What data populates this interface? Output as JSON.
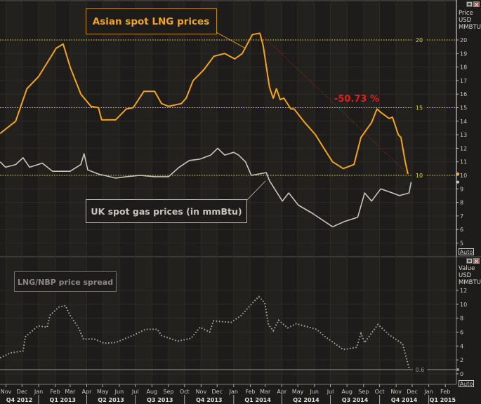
{
  "chart_data": [
    {
      "type": "line",
      "pane": "top",
      "y_axis_label": [
        "Price",
        "USD",
        "MMBTU"
      ],
      "ylim": [
        4.5,
        21.5
      ],
      "yticks": [
        5,
        6,
        7,
        8,
        9,
        10,
        11,
        12,
        13,
        14,
        15,
        16,
        17,
        18,
        19,
        20
      ],
      "grid": true,
      "reference_lines": [
        {
          "value": 20,
          "label": "20",
          "color": "#d8d84a"
        },
        {
          "value": 15,
          "label": "15",
          "color": "#d8d84a"
        },
        {
          "value": 10,
          "label": "10",
          "color": "#d8d84a"
        }
      ],
      "auto_label": "Auto",
      "series": [
        {
          "name": "Asian spot LNG prices",
          "color": "#f5a31a",
          "points": [
            [
              "2012-10-21",
              13.1
            ],
            [
              "2012-11-19",
              14.0
            ],
            [
              "2012-12-10",
              16.4
            ],
            [
              "2013-01-01",
              17.3
            ],
            [
              "2013-02-03",
              19.4
            ],
            [
              "2013-02-16",
              19.7
            ],
            [
              "2013-03-01",
              18.0
            ],
            [
              "2013-03-21",
              16.0
            ],
            [
              "2013-04-09",
              15.1
            ],
            [
              "2013-04-23",
              15.0
            ],
            [
              "2013-04-29",
              14.1
            ],
            [
              "2013-05-25",
              14.1
            ],
            [
              "2013-06-14",
              14.9
            ],
            [
              "2013-06-27",
              15.0
            ],
            [
              "2013-07-17",
              16.2
            ],
            [
              "2013-08-06",
              16.2
            ],
            [
              "2013-08-19",
              15.3
            ],
            [
              "2013-09-01",
              15.1
            ],
            [
              "2013-09-25",
              15.3
            ],
            [
              "2013-10-04",
              15.7
            ],
            [
              "2013-10-17",
              17.0
            ],
            [
              "2013-11-06",
              17.8
            ],
            [
              "2013-11-25",
              18.8
            ],
            [
              "2013-12-15",
              19.0
            ],
            [
              "2014-01-03",
              18.6
            ],
            [
              "2014-01-17",
              19.0
            ],
            [
              "2014-02-05",
              20.4
            ],
            [
              "2014-02-19",
              20.5
            ],
            [
              "2014-02-25",
              19.6
            ],
            [
              "2014-03-09",
              16.5
            ],
            [
              "2014-03-16",
              15.7
            ],
            [
              "2014-03-22",
              16.4
            ],
            [
              "2014-03-29",
              15.6
            ],
            [
              "2014-04-05",
              15.7
            ],
            [
              "2014-04-18",
              14.9
            ],
            [
              "2014-04-24",
              14.9
            ],
            [
              "2014-05-14",
              13.9
            ],
            [
              "2014-06-03",
              13.0
            ],
            [
              "2014-06-22",
              11.8
            ],
            [
              "2014-07-05",
              11.0
            ],
            [
              "2014-07-25",
              10.5
            ],
            [
              "2014-08-14",
              10.8
            ],
            [
              "2014-08-27",
              12.8
            ],
            [
              "2014-09-16",
              13.9
            ],
            [
              "2014-09-26",
              14.9
            ],
            [
              "2014-10-05",
              14.6
            ],
            [
              "2014-10-19",
              14.2
            ],
            [
              "2014-10-25",
              14.3
            ],
            [
              "2014-11-05",
              13.0
            ],
            [
              "2014-11-10",
              12.8
            ],
            [
              "2014-11-18",
              11.0
            ],
            [
              "2014-11-23",
              10.1
            ]
          ]
        },
        {
          "name": "UK spot gas prices (in mmBtu)",
          "color": "#c9c5bc",
          "points": [
            [
              "2012-10-21",
              11.0
            ],
            [
              "2012-10-31",
              10.6
            ],
            [
              "2012-11-19",
              10.8
            ],
            [
              "2012-12-03",
              11.3
            ],
            [
              "2012-12-15",
              10.6
            ],
            [
              "2013-01-08",
              10.9
            ],
            [
              "2013-01-27",
              10.3
            ],
            [
              "2013-03-01",
              10.3
            ],
            [
              "2013-03-21",
              10.8
            ],
            [
              "2013-03-27",
              11.6
            ],
            [
              "2013-04-03",
              10.4
            ],
            [
              "2013-04-23",
              10.1
            ],
            [
              "2013-05-25",
              9.8
            ],
            [
              "2013-06-14",
              9.9
            ],
            [
              "2013-07-10",
              10.0
            ],
            [
              "2013-08-06",
              9.9
            ],
            [
              "2013-09-01",
              9.9
            ],
            [
              "2013-09-21",
              10.6
            ],
            [
              "2013-10-10",
              11.1
            ],
            [
              "2013-10-30",
              11.2
            ],
            [
              "2013-11-19",
              11.5
            ],
            [
              "2013-12-02",
              12.0
            ],
            [
              "2013-12-15",
              11.5
            ],
            [
              "2014-01-01",
              11.7
            ],
            [
              "2014-01-10",
              11.5
            ],
            [
              "2014-01-23",
              11.0
            ],
            [
              "2014-02-03",
              10.0
            ],
            [
              "2014-03-03",
              10.2
            ],
            [
              "2014-03-09",
              9.6
            ],
            [
              "2014-04-02",
              8.1
            ],
            [
              "2014-04-14",
              8.7
            ],
            [
              "2014-05-02",
              7.8
            ],
            [
              "2014-05-28",
              7.2
            ],
            [
              "2014-07-05",
              6.2
            ],
            [
              "2014-07-28",
              6.6
            ],
            [
              "2014-08-21",
              6.9
            ],
            [
              "2014-09-03",
              8.7
            ],
            [
              "2014-09-16",
              8.1
            ],
            [
              "2014-10-03",
              9.0
            ],
            [
              "2014-10-25",
              8.7
            ],
            [
              "2014-11-07",
              8.5
            ],
            [
              "2014-11-25",
              8.7
            ],
            [
              "2014-11-29",
              9.5
            ]
          ]
        }
      ],
      "annotations": {
        "lng_label": "Asian spot LNG prices",
        "uk_label": "UK spot gas prices (in mmBtu)",
        "change_label": "-50.73 %",
        "change_color": "#e0201a",
        "change_from": [
          "2014-02-19",
          20.5
        ],
        "change_to": [
          "2014-11-23",
          10.1
        ]
      }
    },
    {
      "type": "scatter",
      "pane": "bottom",
      "y_axis_label": [
        "Value",
        "USD",
        "MMBTU"
      ],
      "ylim": [
        -0.8,
        13
      ],
      "yticks": [
        0,
        2,
        4,
        6,
        8,
        10,
        12
      ],
      "grid": true,
      "reference_lines": [
        {
          "value": 0.6,
          "label": "0.6",
          "color": "#9a9890"
        }
      ],
      "auto_label": "Auto",
      "series": [
        {
          "name": "LNG/NBP price spread",
          "color": "#a8a59e",
          "points": [
            [
              "2012-10-21",
              2.3
            ],
            [
              "2012-11-09",
              3.0
            ],
            [
              "2012-12-03",
              3.3
            ],
            [
              "2012-12-07",
              5.3
            ],
            [
              "2012-12-31",
              6.9
            ],
            [
              "2013-01-17",
              6.7
            ],
            [
              "2013-01-22",
              8.4
            ],
            [
              "2013-02-08",
              9.6
            ],
            [
              "2013-02-20",
              9.8
            ],
            [
              "2013-03-01",
              8.4
            ],
            [
              "2013-03-16",
              6.7
            ],
            [
              "2013-03-26",
              5.0
            ],
            [
              "2013-04-15",
              5.0
            ],
            [
              "2013-05-04",
              4.4
            ],
            [
              "2013-05-25",
              4.5
            ],
            [
              "2013-06-29",
              5.6
            ],
            [
              "2013-07-20",
              6.4
            ],
            [
              "2013-08-11",
              6.4
            ],
            [
              "2013-08-19",
              5.5
            ],
            [
              "2013-09-18",
              4.7
            ],
            [
              "2013-10-13",
              5.1
            ],
            [
              "2013-10-30",
              6.7
            ],
            [
              "2013-11-17",
              6.0
            ],
            [
              "2013-11-24",
              7.6
            ],
            [
              "2013-12-27",
              7.4
            ],
            [
              "2014-01-15",
              8.4
            ],
            [
              "2014-02-08",
              10.4
            ],
            [
              "2014-02-17",
              11.1
            ],
            [
              "2014-02-28",
              10.2
            ],
            [
              "2014-03-07",
              7.1
            ],
            [
              "2014-03-16",
              6.2
            ],
            [
              "2014-03-26",
              7.7
            ],
            [
              "2014-04-12",
              6.6
            ],
            [
              "2014-04-28",
              7.2
            ],
            [
              "2014-06-05",
              6.4
            ],
            [
              "2014-06-20",
              5.4
            ],
            [
              "2014-07-25",
              3.5
            ],
            [
              "2014-08-19",
              3.8
            ],
            [
              "2014-08-27",
              5.8
            ],
            [
              "2014-09-03",
              4.5
            ],
            [
              "2014-09-28",
              7.1
            ],
            [
              "2014-10-19",
              5.6
            ],
            [
              "2014-11-13",
              4.3
            ],
            [
              "2014-11-26",
              0.6
            ]
          ]
        }
      ],
      "annotations": {
        "spread_label": "LNG/NBP price spread"
      }
    }
  ],
  "x_axis": {
    "months": [
      [
        "2012-11-01",
        "Nov"
      ],
      [
        "2012-12-01",
        "Dec"
      ],
      [
        "2013-01-01",
        "Jan"
      ],
      [
        "2013-02-01",
        "Feb"
      ],
      [
        "2013-03-01",
        "Mar"
      ],
      [
        "2013-04-01",
        "Apr"
      ],
      [
        "2013-05-01",
        "May"
      ],
      [
        "2013-06-01",
        "Jun"
      ],
      [
        "2013-07-01",
        "Jul"
      ],
      [
        "2013-08-01",
        "Aug"
      ],
      [
        "2013-09-01",
        "Sep"
      ],
      [
        "2013-10-01",
        "Oct"
      ],
      [
        "2013-11-01",
        "Nov"
      ],
      [
        "2013-12-01",
        "Dec"
      ],
      [
        "2014-01-01",
        "Jan"
      ],
      [
        "2014-02-01",
        "Feb"
      ],
      [
        "2014-03-01",
        "Mar"
      ],
      [
        "2014-04-01",
        "Apr"
      ],
      [
        "2014-05-01",
        "May"
      ],
      [
        "2014-06-01",
        "Jun"
      ],
      [
        "2014-07-01",
        "Jul"
      ],
      [
        "2014-08-01",
        "Aug"
      ],
      [
        "2014-09-01",
        "Sep"
      ],
      [
        "2014-10-01",
        "Oct"
      ],
      [
        "2014-11-01",
        "Nov"
      ],
      [
        "2014-12-01",
        "Dec"
      ],
      [
        "2015-01-01",
        "Jan"
      ],
      [
        "2015-02-01",
        "Feb"
      ]
    ],
    "quarters": [
      [
        "2012-10-01",
        "2013-01-01",
        "Q4 2012"
      ],
      [
        "2013-01-01",
        "2013-04-01",
        "Q1 2013"
      ],
      [
        "2013-04-01",
        "2013-07-01",
        "Q2 2013"
      ],
      [
        "2013-07-01",
        "2013-10-01",
        "Q3 2013"
      ],
      [
        "2013-10-01",
        "2014-01-01",
        "Q4 2013"
      ],
      [
        "2014-01-01",
        "2014-04-01",
        "Q1 2014"
      ],
      [
        "2014-04-01",
        "2014-07-01",
        "Q2 2014"
      ],
      [
        "2014-07-01",
        "2014-10-01",
        "Q3 2014"
      ],
      [
        "2014-10-01",
        "2015-01-01",
        "Q4 2014"
      ],
      [
        "2015-01-01",
        "2015-04-01",
        "Q1 2015"
      ]
    ]
  },
  "pane_controls": {
    "restore_icon": "restore-icon",
    "close_icon": "close-icon"
  },
  "colors": {
    "background": "#1d1c1a",
    "grid": "#2c2b28",
    "axis": "#e8e8e8"
  }
}
